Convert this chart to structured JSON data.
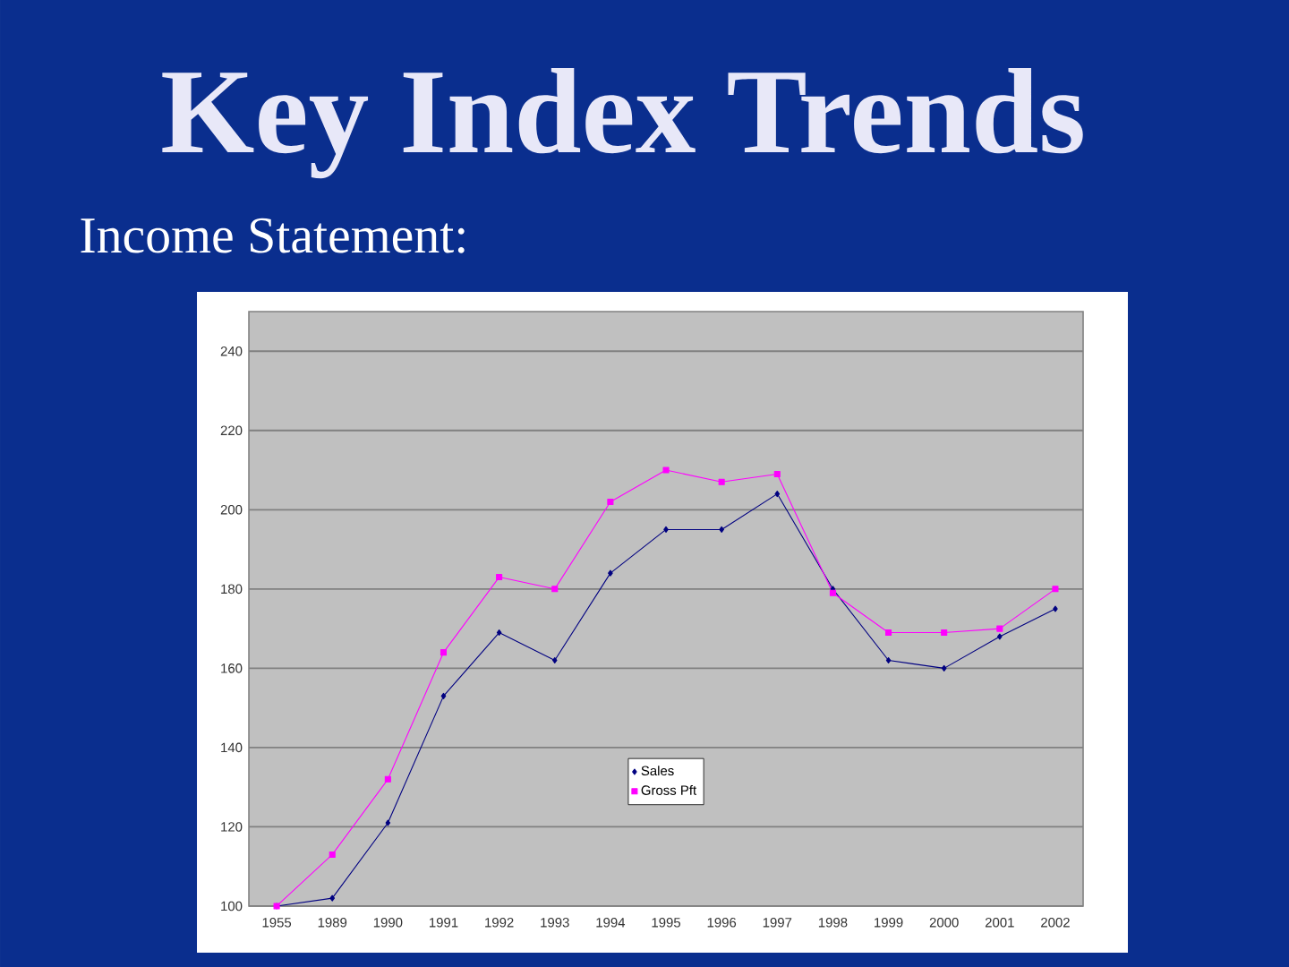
{
  "chart_data": {
    "type": "line",
    "title": "Key Index Trends",
    "subtitle": "Income Statement:",
    "categories": [
      "1955",
      "1989",
      "1990",
      "1991",
      "1992",
      "1993",
      "1994",
      "1995",
      "1996",
      "1997",
      "1998",
      "1999",
      "2000",
      "2001",
      "2002"
    ],
    "series": [
      {
        "name": "Sales",
        "color": "#000080",
        "marker": "diamond",
        "values": [
          100,
          102,
          121,
          153,
          169,
          162,
          184,
          195,
          195,
          204,
          180,
          162,
          160,
          168,
          175
        ]
      },
      {
        "name": "Gross Pft",
        "color": "#ff00ff",
        "marker": "square",
        "values": [
          100,
          113,
          132,
          164,
          183,
          180,
          202,
          210,
          207,
          209,
          179,
          169,
          169,
          170,
          180
        ]
      }
    ],
    "ylim": [
      100,
      250
    ],
    "yticks": [
      100,
      120,
      140,
      160,
      180,
      200,
      220,
      240
    ],
    "grid": "y",
    "legend": "bottom"
  }
}
